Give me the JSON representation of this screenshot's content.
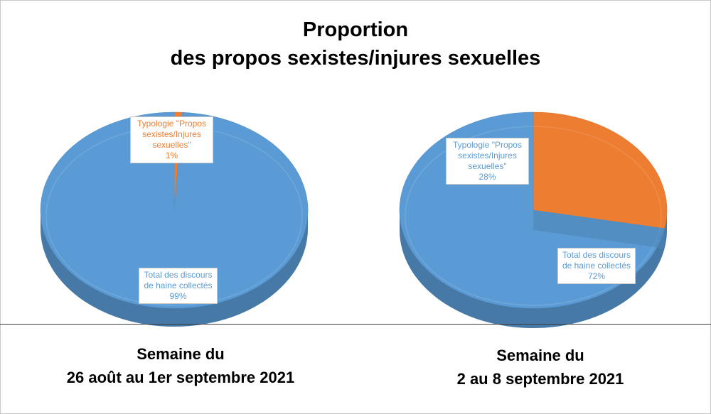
{
  "title_line1": "Proportion",
  "title_line2": "des propos sexistes/injures sexuelles",
  "colors": {
    "blue": "#5b9bd5",
    "orange": "#ed7d31"
  },
  "chart_data": [
    {
      "type": "pie",
      "caption_line1": "Semaine du",
      "caption_line2": "26 août au 1er septembre 2021",
      "slices": [
        {
          "label_lines": [
            "Typologie \"Propos",
            "sexistes/Injures",
            "sexuelles\""
          ],
          "percent_label": "1%",
          "value": 1,
          "color": "#ed7d31"
        },
        {
          "label_lines": [
            "Total des discours",
            "de haine collectés"
          ],
          "percent_label": "99%",
          "value": 99,
          "color": "#5b9bd5"
        }
      ]
    },
    {
      "type": "pie",
      "caption_line1": "Semaine du",
      "caption_line2": "2 au 8 septembre 2021",
      "slices": [
        {
          "label_lines": [
            "Typologie \"Propos",
            "sexistes/Injures",
            "sexuelles\""
          ],
          "percent_label": "28%",
          "value": 28,
          "color": "#ed7d31"
        },
        {
          "label_lines": [
            "Total des discours",
            "de haine collectés"
          ],
          "percent_label": "72%",
          "value": 72,
          "color": "#5b9bd5"
        }
      ]
    }
  ]
}
